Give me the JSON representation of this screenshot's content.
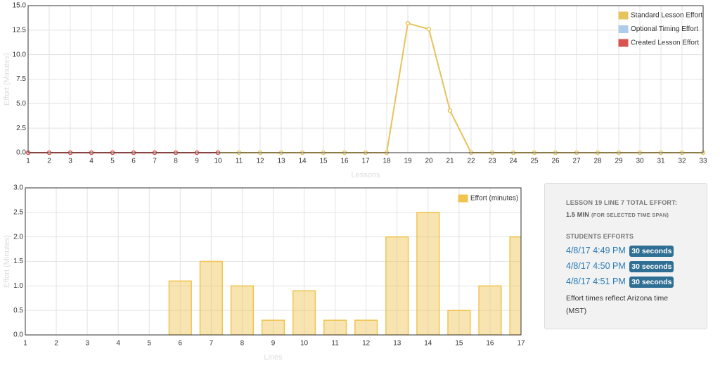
{
  "chart_data": [
    {
      "type": "line",
      "xlabel": "Lessons",
      "ylabel": "Effort (Minutes)",
      "categories": [
        "1",
        "2",
        "3",
        "4",
        "5",
        "6",
        "7",
        "8",
        "9",
        "10",
        "11",
        "12",
        "13",
        "14",
        "15",
        "16",
        "17",
        "18",
        "19",
        "20",
        "21",
        "22",
        "23",
        "24",
        "25",
        "26",
        "27",
        "28",
        "29",
        "30",
        "31",
        "32",
        "33"
      ],
      "series": [
        {
          "name": "Standard Lesson Effort",
          "color": "#e6c35c",
          "values": [
            0,
            0,
            0,
            0,
            0,
            0,
            0,
            0,
            0,
            0,
            0,
            0,
            0,
            0,
            0,
            0,
            0,
            0,
            13.2,
            12.6,
            4.3,
            0,
            0,
            0,
            0,
            0,
            0,
            0,
            0,
            0,
            0,
            0,
            0
          ]
        },
        {
          "name": "Optional Timing Effort",
          "color": "#aecbeb",
          "values": [
            null,
            null,
            null,
            null,
            null,
            null,
            null,
            null,
            null,
            null,
            null,
            null,
            null,
            null,
            null,
            null,
            null,
            null,
            null,
            null,
            null,
            null,
            null,
            null,
            null,
            null,
            null,
            null,
            null,
            null,
            null,
            null,
            null
          ]
        },
        {
          "name": "Created Lesson Effort",
          "color": "#d9534f",
          "values": [
            0,
            0,
            0,
            0,
            0,
            0,
            0,
            0,
            0,
            0,
            null,
            null,
            null,
            null,
            null,
            null,
            null,
            null,
            null,
            null,
            null,
            null,
            null,
            null,
            null,
            null,
            null,
            null,
            null,
            null,
            null,
            null,
            null
          ]
        }
      ],
      "ylim": [
        0,
        15
      ],
      "yticks": [
        {
          "value": 0,
          "label": "0.0"
        },
        {
          "value": 2.5,
          "label": "2.5"
        },
        {
          "value": 5,
          "label": "5.0"
        },
        {
          "value": 7.5,
          "label": "7.5"
        },
        {
          "value": 10,
          "label": "10.0"
        },
        {
          "value": 12.5,
          "label": "12.5"
        },
        {
          "value": 15,
          "label": "15.0"
        }
      ],
      "grid": true,
      "legend": "top-right"
    },
    {
      "type": "bar",
      "xlabel": "Lines",
      "ylabel": "Effort (Minutes)",
      "categories": [
        "1",
        "2",
        "3",
        "4",
        "5",
        "6",
        "7",
        "8",
        "9",
        "10",
        "11",
        "12",
        "13",
        "14",
        "15",
        "16",
        "17"
      ],
      "series": [
        {
          "name": "Effort (minutes)",
          "color": "#f0c44f",
          "values": [
            0,
            0,
            0,
            0,
            0,
            1.1,
            1.5,
            1.0,
            0.3,
            0.9,
            0.3,
            0.3,
            2.0,
            2.5,
            0.5,
            1.0,
            2.0
          ]
        }
      ],
      "ylim": [
        0,
        3
      ],
      "yticks": [
        {
          "value": 0,
          "label": "0.0"
        },
        {
          "value": 0.5,
          "label": "0.5"
        },
        {
          "value": 1,
          "label": "1.0"
        },
        {
          "value": 1.5,
          "label": "1.5"
        },
        {
          "value": 2,
          "label": "2.0"
        },
        {
          "value": 2.5,
          "label": "2.5"
        },
        {
          "value": 3,
          "label": "3.0"
        }
      ],
      "grid": true,
      "legend": "top-right"
    }
  ],
  "panel": {
    "title": "LESSON 19 LINE 7 TOTAL EFFORT:",
    "total": "1.5 MIN",
    "note": "(FOR SELECTED TIME SPAN)",
    "heading": "STUDENTS EFFORTS",
    "entries": [
      {
        "time": "4/8/17 4:49 PM",
        "duration": "30 seconds"
      },
      {
        "time": "4/8/17 4:50 PM",
        "duration": "30 seconds"
      },
      {
        "time": "4/8/17 4:51 PM",
        "duration": "30 seconds"
      }
    ],
    "footer": "Effort times reflect Arizona time (MST)"
  }
}
